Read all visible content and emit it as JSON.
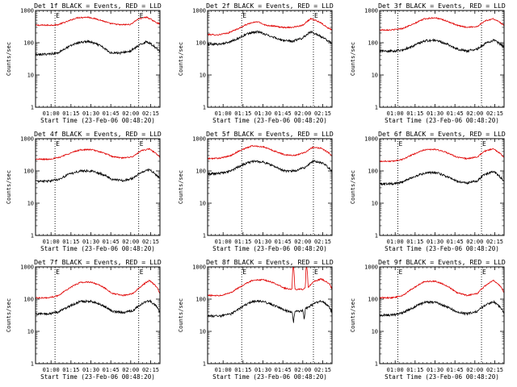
{
  "colors": {
    "events": "#000000",
    "lld": "#e00000",
    "axis": "#000000"
  },
  "chart_data": [
    {
      "type": "line",
      "title": "Det 1f BLACK = Events, RED = LLD",
      "xlabel": "Start Time (23-Feb-06 00:48:20)",
      "ylabel": "Counts/sec",
      "y_scale": "log",
      "ylim": [
        1,
        1000
      ],
      "yticks": [
        "1",
        "10",
        "100",
        "1000"
      ],
      "xlim": [
        48.33,
        142
      ],
      "xticks": [
        60,
        75,
        90,
        105,
        120,
        135
      ],
      "xtick_labels": [
        "01:00",
        "01:15",
        "01:30",
        "01:45",
        "02:00",
        "02:15"
      ],
      "markers": [
        63,
        126
      ],
      "marker_label": "E",
      "series": [
        {
          "x": [
            48.3,
            58,
            65,
            72,
            80,
            88,
            96,
            104,
            112,
            120,
            126,
            132,
            138,
            142
          ],
          "values": [
            350,
            350,
            360,
            450,
            600,
            620,
            520,
            400,
            360,
            370,
            550,
            620,
            450,
            380
          ]
        },
        {
          "x": [
            48.3,
            58,
            65,
            72,
            80,
            88,
            96,
            104,
            112,
            120,
            126,
            132,
            138,
            142
          ],
          "values": [
            42,
            45,
            48,
            70,
            100,
            110,
            85,
            50,
            48,
            55,
            80,
            110,
            75,
            55
          ]
        }
      ]
    },
    {
      "type": "line",
      "title": "Det 2f BLACK = Events, RED = LLD",
      "xlabel": "Start Time (23-Feb-06 00:48:20)",
      "ylabel": "Counts/sec",
      "y_scale": "log",
      "ylim": [
        1,
        1000
      ],
      "yticks": [
        "1",
        "10",
        "100",
        "1000"
      ],
      "xlim": [
        48.33,
        142
      ],
      "xticks": [
        60,
        75,
        90,
        105,
        120,
        135
      ],
      "xtick_labels": [
        "01:00",
        "01:15",
        "01:30",
        "01:45",
        "02:00",
        "02:15"
      ],
      "markers": [
        74,
        128
      ],
      "marker_label": "E",
      "series": [
        {
          "x": [
            48.3,
            56,
            64,
            72,
            80,
            86,
            92,
            98,
            104,
            112,
            120,
            126,
            132,
            138,
            142
          ],
          "values": [
            180,
            175,
            200,
            280,
            400,
            450,
            350,
            330,
            300,
            300,
            350,
            550,
            450,
            300,
            250
          ]
        },
        {
          "x": [
            48.3,
            56,
            64,
            72,
            80,
            86,
            92,
            98,
            104,
            112,
            120,
            126,
            132,
            138,
            142
          ],
          "values": [
            90,
            90,
            100,
            140,
            200,
            220,
            180,
            150,
            120,
            110,
            140,
            220,
            170,
            120,
            100
          ]
        }
      ]
    },
    {
      "type": "line",
      "title": "Det 3f BLACK = Events, RED = LLD",
      "xlabel": "Start Time (23-Feb-06 00:48:20)",
      "ylabel": "Counts/sec",
      "y_scale": "log",
      "ylim": [
        1,
        1000
      ],
      "yticks": [
        "1",
        "10",
        "100",
        "1000"
      ],
      "xlim": [
        48.33,
        142
      ],
      "xticks": [
        60,
        75,
        90,
        105,
        120,
        135
      ],
      "xtick_labels": [
        "01:00",
        "01:15",
        "01:30",
        "01:45",
        "02:00",
        "02:15"
      ],
      "markers": [
        62,
        125
      ],
      "series": [
        {
          "x": [
            48.3,
            58,
            66,
            74,
            82,
            90,
            98,
            106,
            114,
            122,
            128,
            134,
            140,
            142
          ],
          "values": [
            250,
            250,
            280,
            380,
            550,
            600,
            480,
            350,
            300,
            320,
            480,
            550,
            400,
            350
          ]
        },
        {
          "x": [
            48.3,
            58,
            66,
            74,
            82,
            90,
            98,
            106,
            114,
            122,
            128,
            134,
            140,
            142
          ],
          "values": [
            55,
            55,
            60,
            80,
            115,
            120,
            95,
            65,
            55,
            65,
            95,
            120,
            85,
            70
          ]
        }
      ]
    },
    {
      "type": "line",
      "title": "Det 4f BLACK = Events, RED = LLD",
      "xlabel": "Start Time (23-Feb-06 00:48:20)",
      "ylabel": "Counts/sec",
      "y_scale": "log",
      "ylim": [
        1,
        1000
      ],
      "yticks": [
        "1",
        "10",
        "100",
        "1000"
      ],
      "xlim": [
        48.33,
        142
      ],
      "xticks": [
        60,
        75,
        90,
        105,
        120,
        135
      ],
      "xtick_labels": [
        "01:00",
        "01:15",
        "01:30",
        "01:45",
        "02:00",
        "02:15"
      ],
      "markers": [
        63,
        126
      ],
      "marker_label": "E",
      "series": [
        {
          "x": [
            48.3,
            58,
            66,
            74,
            82,
            90,
            98,
            106,
            114,
            122,
            128,
            134,
            140,
            142
          ],
          "values": [
            230,
            230,
            260,
            350,
            450,
            460,
            380,
            280,
            250,
            280,
            420,
            480,
            320,
            260
          ]
        },
        {
          "x": [
            48.3,
            58,
            66,
            74,
            82,
            90,
            98,
            106,
            114,
            122,
            128,
            134,
            140,
            142
          ],
          "values": [
            48,
            48,
            55,
            80,
            100,
            100,
            80,
            55,
            50,
            60,
            90,
            110,
            70,
            55
          ]
        }
      ]
    },
    {
      "type": "line",
      "title": "Det 5f BLACK = Events, RED = LLD",
      "xlabel": "Start Time (23-Feb-06 00:48:20)",
      "ylabel": "Counts/sec",
      "y_scale": "log",
      "ylim": [
        1,
        1000
      ],
      "yticks": [
        "1",
        "10",
        "100",
        "1000"
      ],
      "xlim": [
        48.33,
        142
      ],
      "xticks": [
        60,
        75,
        90,
        105,
        120,
        135
      ],
      "xtick_labels": [
        "01:00",
        "01:15",
        "01:30",
        "01:45",
        "02:00",
        "02:15"
      ],
      "markers": [
        74,
        128
      ],
      "series": [
        {
          "x": [
            48.3,
            58,
            66,
            74,
            82,
            90,
            98,
            106,
            114,
            122,
            128,
            134,
            140,
            142
          ],
          "values": [
            240,
            250,
            300,
            450,
            600,
            560,
            420,
            320,
            300,
            380,
            550,
            500,
            350,
            300
          ]
        },
        {
          "x": [
            48.3,
            58,
            66,
            74,
            82,
            90,
            98,
            106,
            114,
            122,
            128,
            134,
            140,
            142
          ],
          "values": [
            80,
            85,
            100,
            150,
            200,
            190,
            140,
            100,
            100,
            130,
            200,
            180,
            120,
            100
          ]
        }
      ]
    },
    {
      "type": "line",
      "title": "Det 6f BLACK = Events, RED = LLD",
      "xlabel": "Start Time (23-Feb-06 00:48:20)",
      "ylabel": "Counts/sec",
      "y_scale": "log",
      "ylim": [
        1,
        1000
      ],
      "yticks": [
        "1",
        "10",
        "100",
        "1000"
      ],
      "xlim": [
        48.33,
        142
      ],
      "xticks": [
        60,
        75,
        90,
        105,
        120,
        135
      ],
      "xtick_labels": [
        "01:00",
        "01:15",
        "01:30",
        "01:45",
        "02:00",
        "02:15"
      ],
      "markers": [
        62,
        125
      ],
      "marker_label": "E",
      "series": [
        {
          "x": [
            48.3,
            58,
            66,
            74,
            82,
            90,
            98,
            106,
            114,
            122,
            128,
            134,
            140,
            142
          ],
          "values": [
            200,
            200,
            230,
            330,
            450,
            470,
            380,
            270,
            240,
            270,
            420,
            480,
            320,
            260
          ]
        },
        {
          "x": [
            48.3,
            58,
            66,
            74,
            82,
            90,
            98,
            106,
            114,
            122,
            128,
            134,
            140,
            142
          ],
          "values": [
            40,
            40,
            45,
            65,
            85,
            90,
            70,
            48,
            42,
            50,
            80,
            95,
            60,
            48
          ]
        }
      ]
    },
    {
      "type": "line",
      "title": "Det 7f BLACK = Events, RED = LLD",
      "xlabel": "Start Time (23-Feb-06 00:48:20)",
      "ylabel": "Counts/sec",
      "y_scale": "log",
      "ylim": [
        1,
        1000
      ],
      "yticks": [
        "1",
        "10",
        "100",
        "1000"
      ],
      "xlim": [
        48.33,
        142
      ],
      "xticks": [
        60,
        75,
        90,
        105,
        120,
        135
      ],
      "xtick_labels": [
        "01:00",
        "01:15",
        "01:30",
        "01:45",
        "02:00",
        "02:15"
      ],
      "markers": [
        63,
        126
      ],
      "marker_label": "E",
      "series": [
        {
          "x": [
            48.3,
            58,
            66,
            74,
            82,
            90,
            98,
            106,
            114,
            122,
            128,
            134,
            140,
            142
          ],
          "values": [
            110,
            110,
            130,
            220,
            330,
            340,
            250,
            150,
            130,
            150,
            250,
            380,
            220,
            140
          ]
        },
        {
          "x": [
            48.3,
            58,
            66,
            74,
            82,
            90,
            98,
            106,
            114,
            122,
            128,
            134,
            140,
            142
          ],
          "values": [
            35,
            35,
            40,
            60,
            85,
            85,
            65,
            42,
            38,
            45,
            70,
            90,
            55,
            38
          ]
        }
      ]
    },
    {
      "type": "line",
      "title": "Det 8f BLACK = Events, RED = LLD",
      "xlabel": "Start Time (23-Feb-06 00:48:20)",
      "ylabel": "Counts/sec",
      "y_scale": "log",
      "ylim": [
        1,
        1000
      ],
      "yticks": [
        "1",
        "10",
        "100",
        "1000"
      ],
      "xlim": [
        48.33,
        142
      ],
      "xticks": [
        60,
        75,
        90,
        105,
        120,
        135
      ],
      "xtick_labels": [
        "01:00",
        "01:15",
        "01:30",
        "01:45",
        "02:00",
        "02:15"
      ],
      "markers": [
        74,
        128
      ],
      "marker_label": "E",
      "series": [
        {
          "x": [
            48.3,
            58,
            66,
            74,
            82,
            90,
            98,
            106,
            112,
            112.5,
            113,
            114,
            120,
            122,
            122.5,
            123,
            124,
            128,
            134,
            140,
            142
          ],
          "values": [
            130,
            130,
            160,
            250,
            380,
            400,
            320,
            220,
            200,
            1000,
            1000,
            200,
            200,
            230,
            1000,
            1000,
            220,
            350,
            420,
            300,
            200
          ]
        },
        {
          "x": [
            48.3,
            58,
            66,
            74,
            82,
            90,
            98,
            106,
            112,
            113,
            114,
            120,
            121,
            122,
            128,
            134,
            140,
            142
          ],
          "values": [
            30,
            30,
            35,
            55,
            85,
            85,
            65,
            45,
            40,
            18,
            40,
            45,
            22,
            50,
            70,
            90,
            55,
            40
          ]
        }
      ]
    },
    {
      "type": "line",
      "title": "Det 9f BLACK = Events, RED = LLD",
      "xlabel": "Start Time (23-Feb-06 00:48:20)",
      "ylabel": "Counts/sec",
      "y_scale": "log",
      "ylim": [
        1,
        1000
      ],
      "yticks": [
        "1",
        "10",
        "100",
        "1000"
      ],
      "xlim": [
        48.33,
        142
      ],
      "xticks": [
        60,
        75,
        90,
        105,
        120,
        135
      ],
      "xtick_labels": [
        "01:00",
        "01:15",
        "01:30",
        "01:45",
        "02:00",
        "02:15"
      ],
      "markers": [
        62,
        125
      ],
      "marker_label": "E",
      "series": [
        {
          "x": [
            48.3,
            58,
            66,
            74,
            82,
            90,
            98,
            106,
            114,
            122,
            128,
            134,
            140,
            142
          ],
          "values": [
            110,
            110,
            130,
            220,
            350,
            360,
            270,
            160,
            130,
            150,
            260,
            380,
            230,
            150
          ]
        },
        {
          "x": [
            48.3,
            58,
            66,
            74,
            82,
            90,
            98,
            106,
            114,
            122,
            128,
            134,
            140,
            142
          ],
          "values": [
            32,
            32,
            38,
            55,
            80,
            80,
            60,
            40,
            35,
            42,
            65,
            85,
            50,
            36
          ]
        }
      ]
    }
  ]
}
